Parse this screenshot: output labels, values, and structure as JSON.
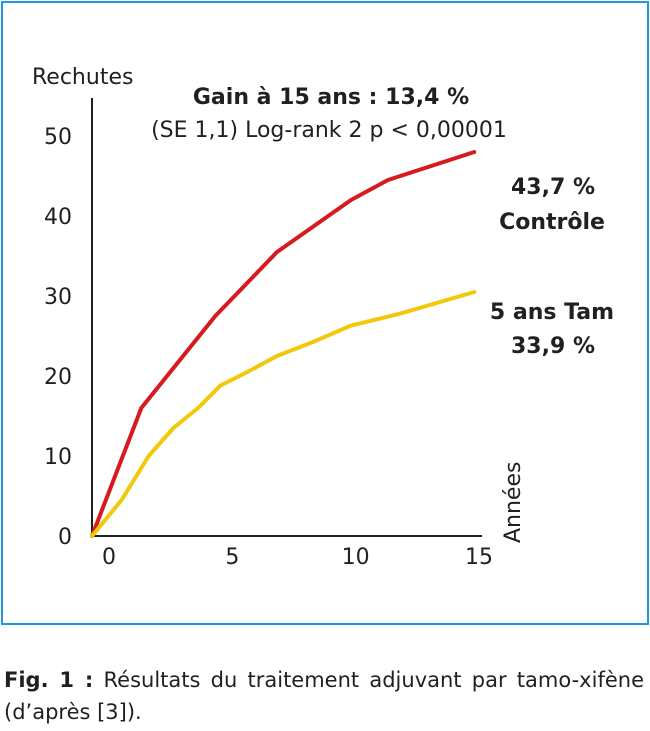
{
  "chart_data": {
    "type": "line",
    "ylabel": "Rechutes",
    "xlabel": "Années",
    "xlim": [
      0,
      15
    ],
    "ylim": [
      0,
      50
    ],
    "xticks": [
      0,
      5,
      10,
      15
    ],
    "yticks": [
      0,
      10,
      20,
      30,
      40,
      50
    ],
    "grid": false,
    "series": [
      {
        "color": "#d71920",
        "x": [
          0,
          2,
          5,
          7.5,
          10.5,
          12,
          15.5
        ],
        "y": [
          0,
          16,
          27.5,
          35.5,
          42,
          44.5,
          48
        ]
      },
      {
        "color": "#f1c80a",
        "x": [
          0,
          1.2,
          2.3,
          3.3,
          4.3,
          5.2,
          6.3,
          7.5,
          9,
          10.5,
          12.5,
          15.5
        ],
        "y": [
          0,
          4.5,
          10,
          13.5,
          16,
          18.8,
          20.5,
          22.5,
          24.3,
          26.3,
          27.8,
          30.5
        ]
      }
    ],
    "annotations": {
      "gain": "Gain à 15 ans : 13,4 %",
      "stats": "(SE 1,1) Log-rank 2 p < 0,00001",
      "control_value": "43,7 %",
      "control_label": "Contrôle",
      "tam_label": "5 ans Tam",
      "tam_value": "33,9 %"
    }
  },
  "caption": {
    "label": "Fig. 1 :",
    "text": "Résultats du traitement adjuvant par tamo-xifène (d’après [3])."
  }
}
